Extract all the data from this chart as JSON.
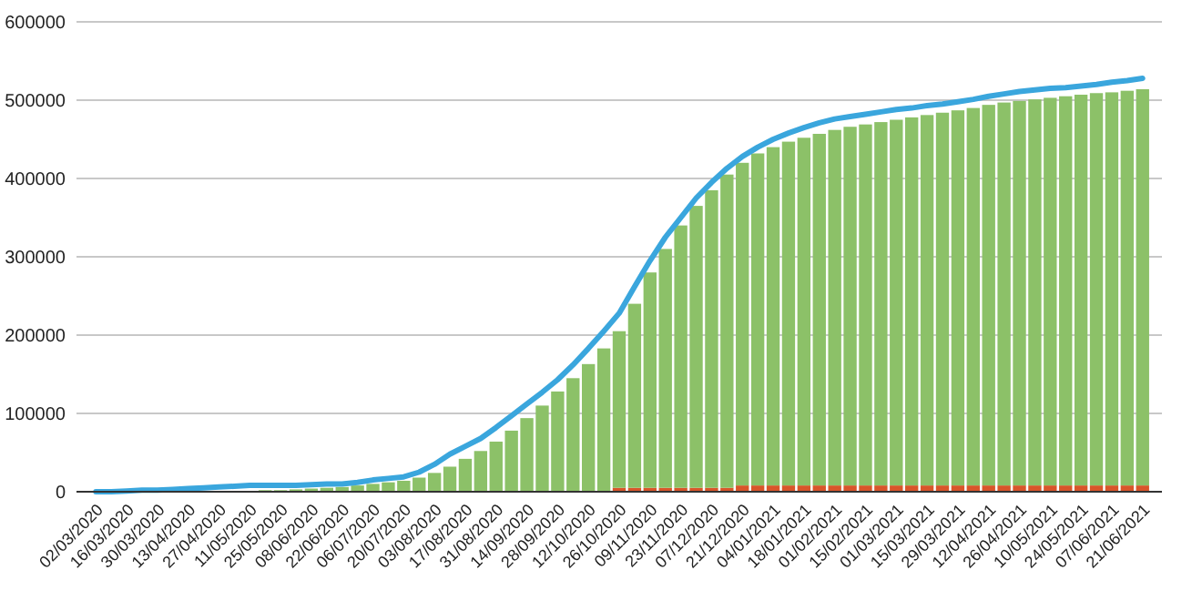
{
  "chart_data": {
    "type": "bar",
    "stacked": true,
    "grid": "y",
    "categories": [
      "02/03/2020",
      null,
      "16/03/2020",
      null,
      "30/03/2020",
      null,
      "13/04/2020",
      null,
      "27/04/2020",
      null,
      "11/05/2020",
      null,
      "25/05/2020",
      null,
      "08/06/2020",
      null,
      "22/06/2020",
      null,
      "06/07/2020",
      null,
      "20/07/2020",
      null,
      "03/08/2020",
      null,
      "17/08/2020",
      null,
      "31/08/2020",
      null,
      "14/09/2020",
      null,
      "28/09/2020",
      null,
      "12/10/2020",
      null,
      "26/10/2020",
      null,
      "09/11/2020",
      null,
      "23/11/2020",
      null,
      "07/12/2020",
      null,
      "21/12/2020",
      null,
      "04/01/2021",
      null,
      "18/01/2021",
      null,
      "01/02/2021",
      null,
      "15/02/2021",
      null,
      "01/03/2021",
      null,
      "15/03/2021",
      null,
      "29/03/2021",
      null,
      "12/04/2021",
      null,
      "26/04/2021",
      null,
      "10/05/2021",
      null,
      "24/05/2021",
      null,
      "07/06/2021",
      null,
      "21/06/2021"
    ],
    "ylim": [
      0,
      600000
    ],
    "yticks": [
      0,
      100000,
      200000,
      300000,
      400000,
      500000,
      600000
    ],
    "series": [
      {
        "color": "#d9552a",
        "values": [
          null,
          null,
          null,
          null,
          null,
          null,
          null,
          null,
          null,
          null,
          null,
          null,
          null,
          null,
          null,
          null,
          null,
          null,
          null,
          null,
          null,
          null,
          null,
          null,
          null,
          null,
          null,
          null,
          null,
          null,
          null,
          null,
          null,
          null,
          5000,
          5000,
          5000,
          5000,
          5000,
          5000,
          5000,
          5000,
          8000,
          8000,
          8000,
          8000,
          8000,
          8000,
          8000,
          8000,
          8000,
          8000,
          8000,
          8000,
          8000,
          8000,
          8000,
          8000,
          8000,
          8000,
          8000,
          8000,
          8000,
          8000,
          8000,
          8000,
          8000,
          8000,
          8000
        ]
      },
      {
        "color": "#8cc168",
        "values": [
          0,
          0,
          0,
          0,
          0,
          0,
          0,
          0,
          0,
          1000,
          1000,
          2000,
          2000,
          3000,
          4000,
          5000,
          6000,
          8000,
          10000,
          12000,
          14000,
          18000,
          24000,
          32000,
          42000,
          52000,
          64000,
          78000,
          94000,
          110000,
          128000,
          145000,
          163000,
          183000,
          200000,
          235000,
          275000,
          305000,
          335000,
          360000,
          380000,
          400000,
          412000,
          424000,
          432000,
          439000,
          444000,
          449000,
          454000,
          458000,
          461000,
          464000,
          467000,
          470000,
          473000,
          476000,
          479000,
          482000,
          486000,
          489000,
          491000,
          493000,
          495000,
          497000,
          499000,
          501000,
          502000,
          504000,
          506000
        ]
      },
      {
        "type": "line",
        "color": "#3aa6dd",
        "values": [
          0,
          0,
          1000,
          2000,
          2000,
          3000,
          4000,
          5000,
          6000,
          7000,
          8000,
          8000,
          8000,
          8000,
          9000,
          10000,
          10000,
          12000,
          15000,
          17000,
          19000,
          25000,
          35000,
          48000,
          58000,
          68000,
          82000,
          97000,
          112000,
          127000,
          143000,
          162000,
          183000,
          205000,
          228000,
          262000,
          295000,
          325000,
          350000,
          375000,
          395000,
          413000,
          428000,
          440000,
          450000,
          458000,
          465000,
          471000,
          476000,
          479000,
          482000,
          485000,
          488000,
          490000,
          493000,
          495000,
          498000,
          501000,
          505000,
          508000,
          511000,
          513000,
          515000,
          516000,
          518000,
          520000,
          523000,
          525000,
          528000
        ]
      }
    ]
  }
}
